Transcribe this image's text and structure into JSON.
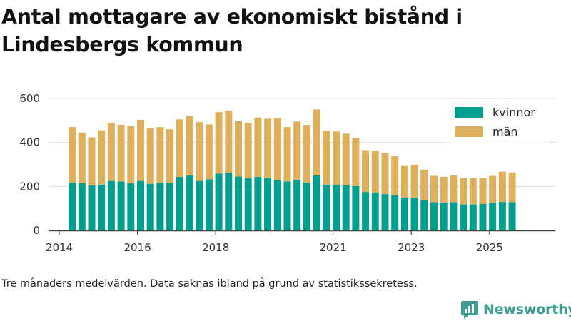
{
  "title": "Antal mottagare av ekonomiskt bistånd i Lindesbergs kommun",
  "caption": "Tre månaders medelvärden. Data saknas ibland på grund av statistikssekretess.",
  "brand": {
    "name": "Newsworthy"
  },
  "colors": {
    "kvinnor": "#009e8c",
    "man": "#deb05c",
    "axis": "#444444",
    "grid": "#dddddd"
  },
  "chart_data": {
    "type": "bar",
    "stacked": true,
    "title": "Antal mottagare av ekonomiskt bistånd i Lindesbergs kommun",
    "xlabel": "",
    "ylabel": "",
    "ylim": [
      0,
      600
    ],
    "yticks": [
      0,
      200,
      400,
      600
    ],
    "xticks": [
      {
        "label": "2014",
        "x": 2014.0
      },
      {
        "label": "2016",
        "x": 2016.0
      },
      {
        "label": "2018",
        "x": 2018.0
      },
      {
        "label": "2021",
        "x": 2021.0
      },
      {
        "label": "2023",
        "x": 2023.0
      },
      {
        "label": "2025",
        "x": 2025.0
      }
    ],
    "x": [
      2014.33,
      2014.58,
      2014.83,
      2015.08,
      2015.33,
      2015.58,
      2015.83,
      2016.08,
      2016.33,
      2016.58,
      2016.83,
      2017.08,
      2017.33,
      2017.58,
      2017.83,
      2018.08,
      2018.33,
      2018.58,
      2018.83,
      2019.08,
      2019.33,
      2019.58,
      2019.83,
      2020.08,
      2020.33,
      2020.58,
      2020.83,
      2021.08,
      2021.33,
      2021.58,
      2021.83,
      2022.08,
      2022.33,
      2022.58,
      2022.83,
      2023.08,
      2023.33,
      2023.58,
      2023.83,
      2024.08,
      2024.33,
      2024.58,
      2024.83,
      2025.08,
      2025.33,
      2025.58
    ],
    "series": [
      {
        "name": "kvinnor",
        "values": [
          218,
          215,
          205,
          208,
          225,
          222,
          215,
          225,
          212,
          218,
          218,
          243,
          250,
          225,
          232,
          258,
          262,
          245,
          238,
          243,
          238,
          228,
          222,
          230,
          218,
          250,
          208,
          207,
          205,
          202,
          175,
          172,
          165,
          160,
          150,
          148,
          138,
          128,
          127,
          128,
          118,
          118,
          120,
          125,
          130,
          128
        ]
      },
      {
        "name": "män",
        "values": [
          252,
          230,
          218,
          247,
          265,
          258,
          260,
          278,
          253,
          252,
          242,
          262,
          270,
          268,
          250,
          280,
          283,
          252,
          252,
          270,
          270,
          283,
          248,
          265,
          262,
          300,
          245,
          243,
          235,
          218,
          190,
          190,
          187,
          178,
          143,
          150,
          138,
          120,
          117,
          122,
          120,
          120,
          118,
          123,
          137,
          135
        ]
      }
    ],
    "legend": {
      "position": "top-right",
      "entries": [
        "kvinnor",
        "män"
      ]
    }
  }
}
